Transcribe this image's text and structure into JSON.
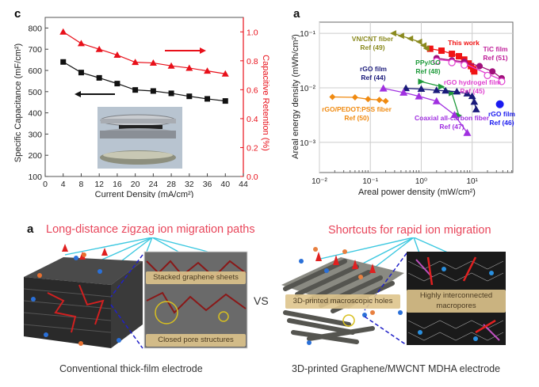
{
  "chart_data": [
    {
      "type": "line",
      "panel_label": "c",
      "title": "",
      "xlabel": "Current Density (mA/cm²)",
      "ylabel": "Specific Capacitance (mF/cm²)",
      "y2label": "Capacitive Retention (%)",
      "xlim": [
        0,
        44
      ],
      "ylim": [
        100,
        850
      ],
      "y2lim": [
        0.0,
        1.1
      ],
      "xticks": [
        0,
        4,
        8,
        12,
        16,
        20,
        24,
        28,
        32,
        36,
        40,
        44
      ],
      "yticks": [
        100,
        200,
        300,
        400,
        500,
        600,
        700,
        800
      ],
      "y2ticks": [
        "0.0",
        "0.2",
        "0.4",
        "0.6",
        "0.8",
        "1.0"
      ],
      "x": [
        4,
        8,
        12,
        16,
        20,
        24,
        28,
        32,
        36,
        40
      ],
      "series": [
        {
          "name": "Specific Capacitance",
          "axis": "left",
          "marker": "square",
          "color": "#111111",
          "values": [
            640,
            590,
            565,
            538,
            508,
            503,
            492,
            478,
            466,
            456
          ]
        },
        {
          "name": "Capacitive Retention",
          "axis": "right",
          "marker": "triangle",
          "color": "#e8101a",
          "values": [
            1.0,
            0.92,
            0.88,
            0.84,
            0.79,
            0.785,
            0.765,
            0.75,
            0.73,
            0.71
          ]
        }
      ],
      "annotations": [
        {
          "text": "arrow pointing right to right axis",
          "color": "#e8101a"
        },
        {
          "text": "arrow pointing left to left axis",
          "color": "#111111"
        },
        {
          "text": "inset photo: coin cell assembly"
        }
      ],
      "grid": false
    },
    {
      "type": "scatter",
      "panel_label": "a",
      "title": "",
      "xlabel": "Areal power density  (mW/cm²)",
      "ylabel": "Areal energy density  (mWh/cm²)",
      "xscale": "log",
      "yscale": "log",
      "xlim": [
        0.01,
        63
      ],
      "ylim": [
        0.00028,
        0.16
      ],
      "xticks": [
        "10⁻²",
        "10⁻¹",
        "10⁰",
        "10¹"
      ],
      "yticks": [
        "10⁻³",
        "10⁻²",
        "10⁻¹"
      ],
      "grid": true,
      "series": [
        {
          "name": "This work",
          "color": "#f01414",
          "marker": "square",
          "x": [
            1.5,
            2.5,
            4.0,
            5.5,
            7.0,
            8.5,
            9.5,
            10.5,
            11
          ],
          "y": [
            0.052,
            0.048,
            0.042,
            0.038,
            0.033,
            0.028,
            0.025,
            0.022,
            0.02
          ]
        },
        {
          "name": "VN/CNT fiber Ref (49)",
          "color": "#8a8a1e",
          "marker": "triangle-left",
          "x": [
            0.28,
            0.4,
            0.6,
            0.9,
            1.1,
            1.25
          ],
          "y": [
            0.1,
            0.09,
            0.08,
            0.07,
            0.06,
            0.053
          ]
        },
        {
          "name": "TiC film Ref (51)",
          "color": "#a0107a",
          "marker": "half-circle",
          "x": [
            2,
            4,
            7,
            14,
            25,
            38
          ],
          "y": [
            0.035,
            0.032,
            0.03,
            0.025,
            0.02,
            0.015
          ]
        },
        {
          "name": "rGO hydrogel film Ref (45)",
          "color": "#e040d0",
          "marker": "open-circle",
          "x": [
            2,
            4,
            7,
            20,
            38
          ],
          "y": [
            0.033,
            0.031,
            0.028,
            0.018,
            0.014
          ]
        },
        {
          "name": "PPy/GO Ref (48)",
          "color": "#1e9a3a",
          "marker": "triangle-right",
          "x": [
            1.0,
            2.5,
            4.0,
            5.5
          ],
          "y": [
            0.013,
            0.0105,
            0.008,
            0.0031
          ]
        },
        {
          "name": "rGO film Ref (44)",
          "color": "#1a1a7a",
          "marker": "triangle-up-half",
          "x": [
            0.5,
            1.0,
            2.0,
            3.0,
            5.0,
            8.0,
            10,
            11,
            12
          ],
          "y": [
            0.0098,
            0.0095,
            0.009,
            0.0088,
            0.0085,
            0.0078,
            0.007,
            0.0055,
            0.004
          ]
        },
        {
          "name": "Coaxial all-carbon fiber Ref (47)",
          "color": "#a030e0",
          "marker": "triangle-up",
          "x": [
            0.18,
            0.45,
            0.9,
            2.0,
            4.5,
            8
          ],
          "y": [
            0.0098,
            0.0082,
            0.007,
            0.0057,
            0.0032,
            0.0015
          ]
        },
        {
          "name": "rGO/PEDOT:PSS fiber Ref (50)",
          "color": "#f08a10",
          "marker": "diamond",
          "x": [
            0.018,
            0.05,
            0.09,
            0.15,
            0.2
          ],
          "y": [
            0.0068,
            0.0067,
            0.0062,
            0.006,
            0.0057
          ]
        },
        {
          "name": "rGO film Ref (46)",
          "color": "#1a1af0",
          "marker": "circle",
          "x": [
            35
          ],
          "y": [
            0.005
          ]
        }
      ],
      "labels": [
        {
          "lines": [
            "VN/CNT fiber",
            "Ref (49)"
          ],
          "color": "#8a8a1e"
        },
        {
          "lines": [
            "This work"
          ],
          "color": "#f01414"
        },
        {
          "lines": [
            "TiC film",
            "Ref (51)"
          ],
          "color": "#c0209a"
        },
        {
          "lines": [
            "PPy/GO",
            "Ref (48)"
          ],
          "color": "#1e9a3a"
        },
        {
          "lines": [
            "rGO film",
            "Ref (44)"
          ],
          "color": "#1a1a7a"
        },
        {
          "lines": [
            "rGO hydrogel film",
            "Ref (45)"
          ],
          "color": "#e040d0"
        },
        {
          "lines": [
            "rGO/PEDOT:PSS fiber",
            "Ref (50)"
          ],
          "color": "#f08a10"
        },
        {
          "lines": [
            "Coaxial all-carbon fiber",
            "Ref (47)"
          ],
          "color": "#a030e0"
        },
        {
          "lines": [
            "rGO film",
            "Ref (46)"
          ],
          "color": "#1a1af0"
        }
      ]
    }
  ],
  "illustrations": {
    "panel_label": "a",
    "left": {
      "title": "Long-distance zigzag  ion migration paths",
      "box_top": "Stacked graphene sheets",
      "box_bottom": "Closed pore structures",
      "caption": "Conventional thick-film electrode"
    },
    "vs": "VS",
    "right": {
      "title": "Shortcuts for rapid ion migration",
      "box_left": "3D-printed macroscopic  holes",
      "box_right_1": "Highly interconnected",
      "box_right_2": "macropores",
      "caption": "3D-printed Graphene/MWCNT MDHA electrode"
    }
  }
}
